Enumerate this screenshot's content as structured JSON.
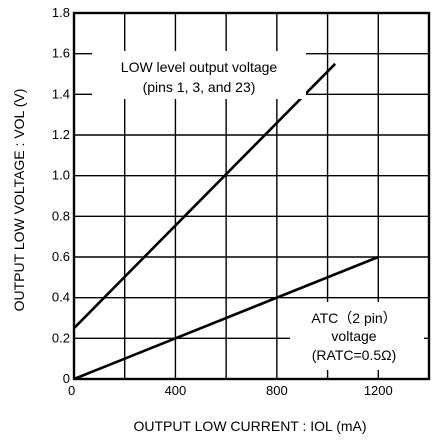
{
  "chart_data": {
    "type": "line",
    "xlabel": "OUTPUT LOW CURRENT : IOL (mA)",
    "ylabel": "OUTPUT LOW VOLTAGE : VOL (V)",
    "xlim": [
      0,
      1400
    ],
    "ylim": [
      0,
      1.8
    ],
    "x_ticks": [
      "0",
      "400",
      "800",
      "1200"
    ],
    "y_ticks": [
      "0",
      "0.2",
      "0.4",
      "0.6",
      "0.8",
      "1.0",
      "1.2",
      "1.4",
      "1.6",
      "1.8"
    ],
    "grid": true,
    "series": [
      {
        "x": [
          0,
          1030
        ],
        "y": [
          0.25,
          1.55
        ],
        "color": "#000000"
      },
      {
        "x": [
          0,
          1200
        ],
        "y": [
          0,
          0.6
        ],
        "color": "#000000"
      }
    ],
    "annotations": [
      {
        "lines": [
          "LOW level output voltage",
          "(pins 1, 3, and 23)"
        ]
      },
      {
        "lines": [
          "ATC（2 pin）",
          "voltage",
          "(RATC=0.5Ω)"
        ]
      }
    ]
  }
}
